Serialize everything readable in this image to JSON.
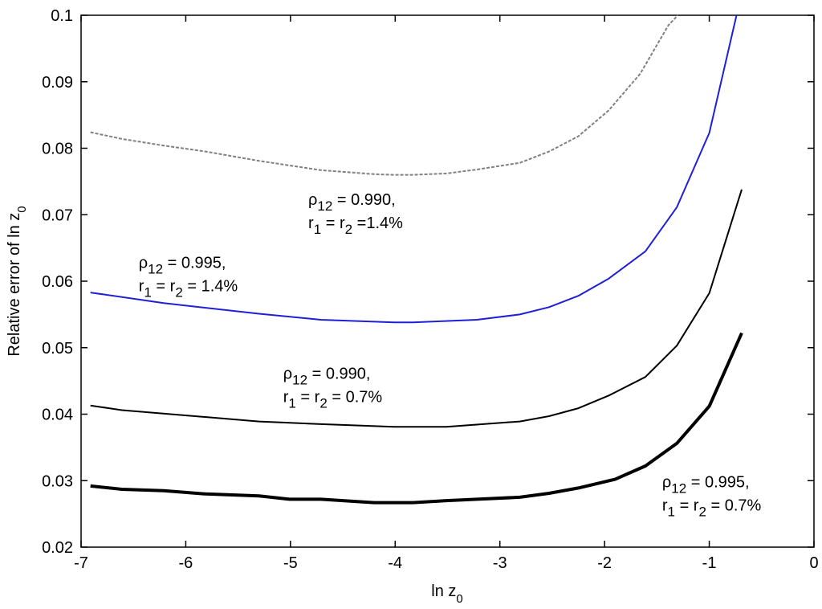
{
  "chart_data": {
    "type": "line",
    "xlabel": "ln z",
    "xlabel_sub": "0",
    "ylabel": "Relative error of ln z",
    "ylabel_sub": "0",
    "xlim": [
      -7,
      0
    ],
    "ylim": [
      0.02,
      0.1
    ],
    "x_ticks": [
      -7,
      -6,
      -5,
      -4,
      -3,
      -2,
      -1,
      0
    ],
    "y_ticks": [
      0.02,
      0.03,
      0.04,
      0.05,
      0.06,
      0.07,
      0.08,
      0.09,
      0.1
    ],
    "x_tick_labels": [
      "-7",
      "-6",
      "-5",
      "-4",
      "-3",
      "-2",
      "-1",
      "0"
    ],
    "y_tick_labels": [
      "0.02",
      "0.03",
      "0.04",
      "0.05",
      "0.06",
      "0.07",
      "0.08",
      "0.09",
      "0.1"
    ],
    "grid": false,
    "series": [
      {
        "color": "#808080",
        "style": "dashed",
        "width": "thin",
        "x": [
          -6.91,
          -6.61,
          -6.21,
          -5.81,
          -5.3,
          -4.71,
          -4.2,
          -4.01,
          -3.83,
          -3.51,
          -3.22,
          -2.81,
          -2.53,
          -2.25,
          -1.96,
          -1.66,
          -1.39,
          -1.3
        ],
        "y": [
          0.0824,
          0.0814,
          0.0804,
          0.0795,
          0.0781,
          0.0767,
          0.0761,
          0.076,
          0.076,
          0.0762,
          0.0768,
          0.0778,
          0.0795,
          0.0818,
          0.0857,
          0.0912,
          0.0985,
          0.1
        ]
      },
      {
        "color": "#1f1fd6",
        "style": "solid",
        "width": "thin",
        "x": [
          -6.91,
          -6.21,
          -5.3,
          -4.71,
          -4.01,
          -3.83,
          -3.22,
          -2.81,
          -2.53,
          -2.25,
          -1.96,
          -1.61,
          -1.31,
          -1.0,
          -0.74
        ],
        "y": [
          0.0583,
          0.0567,
          0.0551,
          0.0542,
          0.0538,
          0.0538,
          0.0542,
          0.055,
          0.0561,
          0.0578,
          0.0604,
          0.0645,
          0.0711,
          0.0823,
          0.1
        ]
      },
      {
        "color": "#000000",
        "style": "solid",
        "width": "thin",
        "x": [
          -6.91,
          -6.61,
          -5.3,
          -4.71,
          -4.01,
          -3.51,
          -2.81,
          -2.53,
          -2.25,
          -1.96,
          -1.61,
          -1.31,
          -1.0,
          -0.69
        ],
        "y": [
          0.0413,
          0.0406,
          0.0389,
          0.0385,
          0.0381,
          0.0381,
          0.0389,
          0.0397,
          0.0409,
          0.0428,
          0.0456,
          0.0503,
          0.0582,
          0.0738
        ]
      },
      {
        "color": "#000000",
        "style": "solid",
        "width": "thick",
        "x": [
          -6.91,
          -6.61,
          -6.21,
          -5.81,
          -5.3,
          -5.01,
          -4.71,
          -4.2,
          -3.83,
          -3.51,
          -3.22,
          -2.81,
          -2.53,
          -2.25,
          -1.9,
          -1.61,
          -1.31,
          -1.0,
          -0.69
        ],
        "y": [
          0.0292,
          0.0287,
          0.0285,
          0.028,
          0.0277,
          0.0272,
          0.0272,
          0.0267,
          0.0267,
          0.027,
          0.0272,
          0.0275,
          0.0281,
          0.0289,
          0.0302,
          0.0322,
          0.0356,
          0.0412,
          0.0522
        ]
      }
    ],
    "annotations": [
      {
        "line1": "ρ",
        "line1_sub": "12",
        "line1_rest": " = 0.990,",
        "line2_a": "r",
        "line2_a_sub": "1",
        "line2_b": " = r",
        "line2_b_sub": "2",
        "line2_rest": " =1.4%",
        "pos_x": -4.83,
        "pos_y": 0.0715
      },
      {
        "line1": "ρ",
        "line1_sub": "12",
        "line1_rest": " = 0.995,",
        "line2_a": "r",
        "line2_a_sub": "1",
        "line2_b": " = r",
        "line2_b_sub": "2",
        "line2_rest": " = 1.4%",
        "pos_x": -6.45,
        "pos_y": 0.062
      },
      {
        "line1": "ρ",
        "line1_sub": "12",
        "line1_rest": " = 0.990,",
        "line2_a": "r",
        "line2_a_sub": "1",
        "line2_b": " = r",
        "line2_b_sub": "2",
        "line2_rest": " = 0.7%",
        "pos_x": -5.07,
        "pos_y": 0.0453
      },
      {
        "line1": "ρ",
        "line1_sub": "12",
        "line1_rest": " = 0.995,",
        "line2_a": "r",
        "line2_a_sub": "1",
        "line2_b": " = r",
        "line2_b_sub": "2",
        "line2_rest": " = 0.7%",
        "pos_x": -1.45,
        "pos_y": 0.029
      }
    ]
  }
}
